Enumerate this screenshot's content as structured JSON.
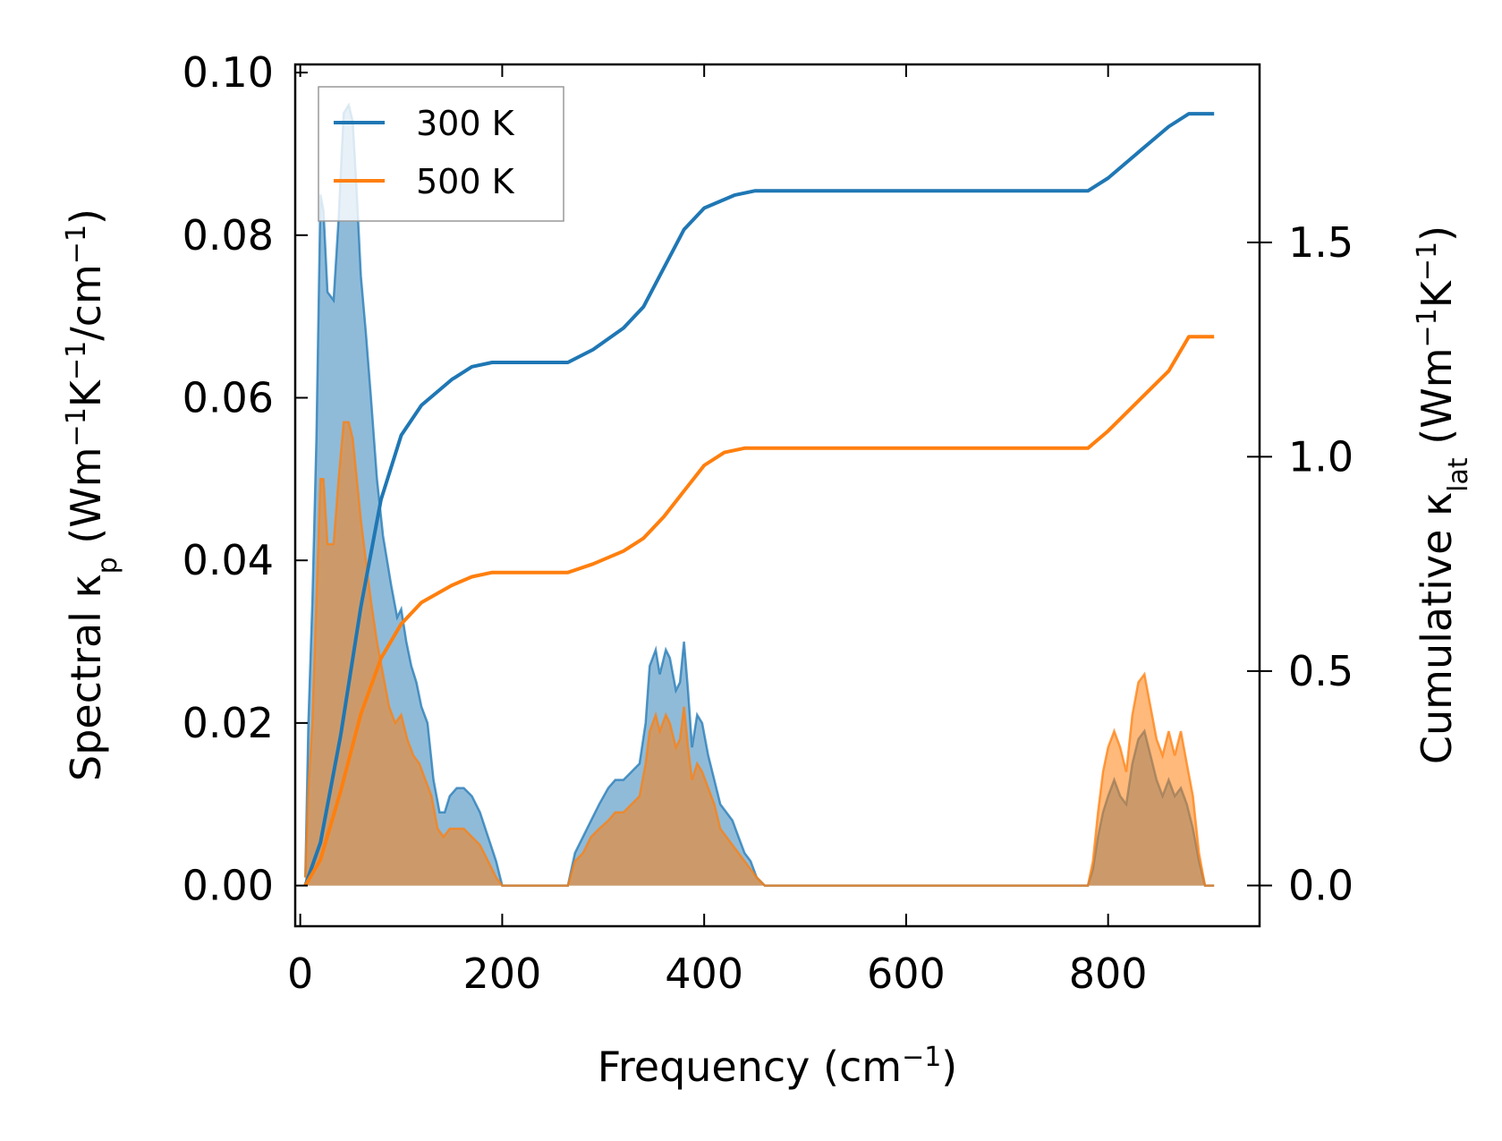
{
  "chart_data": {
    "type": "area",
    "title": "",
    "xlabel": {
      "base": "Frequency (cm",
      "sup": "−1",
      "tail": ")"
    },
    "ylabel_left": {
      "prefix": "Spectral κ",
      "sub": "p",
      "mid1": " (Wm",
      "sup1": "−1",
      "mid2": "K",
      "sup2": "−1",
      "mid3": "/cm",
      "sup3": "−1",
      "tail": ")"
    },
    "ylabel_right": {
      "prefix": "Cumulative κ",
      "sub": "lat",
      "mid1": " (Wm",
      "sup1": "−1",
      "mid2": "K",
      "sup2": "−1",
      "tail": ")"
    },
    "xlim": [
      -5,
      950
    ],
    "ylim_left": [
      -0.005,
      0.101
    ],
    "ylim_right": [
      -0.095,
      1.915
    ],
    "x_ticks": [
      0,
      200,
      400,
      600,
      800
    ],
    "x_tick_labels": [
      "0",
      "200",
      "400",
      "600",
      "800"
    ],
    "y_left_ticks": [
      0.0,
      0.02,
      0.04,
      0.06,
      0.08,
      0.1
    ],
    "y_left_tick_labels": [
      "0.00",
      "0.02",
      "0.04",
      "0.06",
      "0.08",
      "0.10"
    ],
    "y_right_ticks": [
      0.0,
      0.5,
      1.0,
      1.5
    ],
    "y_right_tick_labels": [
      "0.0",
      "0.5",
      "1.0",
      "1.5"
    ],
    "grid": false,
    "legend": {
      "placement": "top-left",
      "entries": [
        "300 K",
        "500 K"
      ]
    },
    "colors": {
      "s300": "#1f77b4",
      "s500": "#ff7f0e",
      "fill300": "#1f77b4",
      "fill500": "#ff7f0e",
      "overlap": "#c29a70"
    },
    "series": [
      {
        "name": "300 K",
        "spectral": [
          [
            5,
            0.001
          ],
          [
            8,
            0.02
          ],
          [
            12,
            0.035
          ],
          [
            16,
            0.055
          ],
          [
            20,
            0.085
          ],
          [
            23,
            0.083
          ],
          [
            27,
            0.073
          ],
          [
            33,
            0.072
          ],
          [
            38,
            0.082
          ],
          [
            43,
            0.095
          ],
          [
            48,
            0.096
          ],
          [
            52,
            0.094
          ],
          [
            56,
            0.085
          ],
          [
            60,
            0.075
          ],
          [
            65,
            0.068
          ],
          [
            70,
            0.06
          ],
          [
            76,
            0.05
          ],
          [
            82,
            0.043
          ],
          [
            90,
            0.037
          ],
          [
            96,
            0.033
          ],
          [
            100,
            0.034
          ],
          [
            105,
            0.03
          ],
          [
            110,
            0.027
          ],
          [
            115,
            0.025
          ],
          [
            120,
            0.022
          ],
          [
            126,
            0.02
          ],
          [
            132,
            0.013
          ],
          [
            138,
            0.009
          ],
          [
            143,
            0.009
          ],
          [
            148,
            0.011
          ],
          [
            155,
            0.012
          ],
          [
            162,
            0.012
          ],
          [
            170,
            0.011
          ],
          [
            178,
            0.009
          ],
          [
            186,
            0.006
          ],
          [
            194,
            0.003
          ],
          [
            200,
            0.0
          ],
          [
            265,
            0.0
          ],
          [
            272,
            0.004
          ],
          [
            280,
            0.006
          ],
          [
            288,
            0.008
          ],
          [
            296,
            0.01
          ],
          [
            305,
            0.012
          ],
          [
            312,
            0.013
          ],
          [
            320,
            0.013
          ],
          [
            328,
            0.014
          ],
          [
            336,
            0.015
          ],
          [
            342,
            0.02
          ],
          [
            346,
            0.027
          ],
          [
            352,
            0.029
          ],
          [
            356,
            0.026
          ],
          [
            362,
            0.029
          ],
          [
            366,
            0.028
          ],
          [
            372,
            0.024
          ],
          [
            376,
            0.025
          ],
          [
            380,
            0.03
          ],
          [
            384,
            0.024
          ],
          [
            388,
            0.017
          ],
          [
            393,
            0.021
          ],
          [
            398,
            0.02
          ],
          [
            404,
            0.016
          ],
          [
            410,
            0.013
          ],
          [
            416,
            0.01
          ],
          [
            422,
            0.009
          ],
          [
            428,
            0.008
          ],
          [
            434,
            0.006
          ],
          [
            440,
            0.004
          ],
          [
            446,
            0.003
          ],
          [
            452,
            0.001
          ],
          [
            460,
            0.0
          ],
          [
            780,
            0.0
          ],
          [
            785,
            0.002
          ],
          [
            790,
            0.006
          ],
          [
            795,
            0.009
          ],
          [
            800,
            0.011
          ],
          [
            806,
            0.013
          ],
          [
            812,
            0.011
          ],
          [
            818,
            0.01
          ],
          [
            824,
            0.015
          ],
          [
            830,
            0.018
          ],
          [
            836,
            0.019
          ],
          [
            842,
            0.016
          ],
          [
            848,
            0.013
          ],
          [
            854,
            0.011
          ],
          [
            860,
            0.013
          ],
          [
            866,
            0.011
          ],
          [
            872,
            0.012
          ],
          [
            878,
            0.01
          ],
          [
            884,
            0.007
          ],
          [
            890,
            0.003
          ],
          [
            896,
            0.0
          ],
          [
            905,
            0.0
          ]
        ],
        "cumulative": [
          [
            5,
            0.0
          ],
          [
            20,
            0.1
          ],
          [
            40,
            0.35
          ],
          [
            60,
            0.65
          ],
          [
            80,
            0.9
          ],
          [
            100,
            1.05
          ],
          [
            120,
            1.12
          ],
          [
            150,
            1.18
          ],
          [
            170,
            1.21
          ],
          [
            190,
            1.22
          ],
          [
            265,
            1.22
          ],
          [
            290,
            1.25
          ],
          [
            320,
            1.3
          ],
          [
            340,
            1.35
          ],
          [
            360,
            1.44
          ],
          [
            380,
            1.53
          ],
          [
            400,
            1.58
          ],
          [
            430,
            1.61
          ],
          [
            450,
            1.62
          ],
          [
            780,
            1.62
          ],
          [
            800,
            1.65
          ],
          [
            830,
            1.71
          ],
          [
            860,
            1.77
          ],
          [
            880,
            1.8
          ],
          [
            905,
            1.8
          ]
        ]
      },
      {
        "name": "500 K",
        "spectral": [
          [
            5,
            0.001
          ],
          [
            8,
            0.012
          ],
          [
            12,
            0.02
          ],
          [
            16,
            0.035
          ],
          [
            20,
            0.05
          ],
          [
            23,
            0.05
          ],
          [
            27,
            0.042
          ],
          [
            33,
            0.042
          ],
          [
            38,
            0.05
          ],
          [
            43,
            0.057
          ],
          [
            48,
            0.057
          ],
          [
            52,
            0.055
          ],
          [
            56,
            0.05
          ],
          [
            60,
            0.045
          ],
          [
            65,
            0.04
          ],
          [
            70,
            0.035
          ],
          [
            76,
            0.03
          ],
          [
            82,
            0.026
          ],
          [
            88,
            0.022
          ],
          [
            94,
            0.02
          ],
          [
            100,
            0.021
          ],
          [
            106,
            0.018
          ],
          [
            112,
            0.016
          ],
          [
            118,
            0.015
          ],
          [
            124,
            0.013
          ],
          [
            130,
            0.011
          ],
          [
            136,
            0.007
          ],
          [
            142,
            0.006
          ],
          [
            148,
            0.007
          ],
          [
            155,
            0.007
          ],
          [
            162,
            0.007
          ],
          [
            170,
            0.006
          ],
          [
            178,
            0.005
          ],
          [
            186,
            0.003
          ],
          [
            194,
            0.001
          ],
          [
            200,
            0.0
          ],
          [
            265,
            0.0
          ],
          [
            272,
            0.003
          ],
          [
            280,
            0.004
          ],
          [
            288,
            0.006
          ],
          [
            296,
            0.007
          ],
          [
            305,
            0.008
          ],
          [
            312,
            0.009
          ],
          [
            320,
            0.009
          ],
          [
            328,
            0.01
          ],
          [
            336,
            0.011
          ],
          [
            342,
            0.015
          ],
          [
            346,
            0.019
          ],
          [
            352,
            0.021
          ],
          [
            356,
            0.019
          ],
          [
            362,
            0.021
          ],
          [
            366,
            0.02
          ],
          [
            372,
            0.017
          ],
          [
            376,
            0.018
          ],
          [
            380,
            0.022
          ],
          [
            384,
            0.017
          ],
          [
            388,
            0.013
          ],
          [
            393,
            0.015
          ],
          [
            398,
            0.014
          ],
          [
            404,
            0.012
          ],
          [
            410,
            0.01
          ],
          [
            416,
            0.007
          ],
          [
            422,
            0.006
          ],
          [
            428,
            0.005
          ],
          [
            434,
            0.004
          ],
          [
            440,
            0.003
          ],
          [
            446,
            0.002
          ],
          [
            452,
            0.001
          ],
          [
            460,
            0.0
          ],
          [
            780,
            0.0
          ],
          [
            785,
            0.003
          ],
          [
            790,
            0.009
          ],
          [
            795,
            0.014
          ],
          [
            800,
            0.017
          ],
          [
            806,
            0.019
          ],
          [
            812,
            0.017
          ],
          [
            818,
            0.014
          ],
          [
            824,
            0.021
          ],
          [
            830,
            0.025
          ],
          [
            836,
            0.026
          ],
          [
            842,
            0.022
          ],
          [
            848,
            0.018
          ],
          [
            854,
            0.016
          ],
          [
            860,
            0.019
          ],
          [
            866,
            0.016
          ],
          [
            872,
            0.019
          ],
          [
            878,
            0.015
          ],
          [
            884,
            0.011
          ],
          [
            890,
            0.004
          ],
          [
            896,
            0.0
          ],
          [
            905,
            0.0
          ]
        ],
        "cumulative": [
          [
            5,
            0.0
          ],
          [
            20,
            0.06
          ],
          [
            40,
            0.22
          ],
          [
            60,
            0.4
          ],
          [
            80,
            0.53
          ],
          [
            100,
            0.61
          ],
          [
            120,
            0.66
          ],
          [
            150,
            0.7
          ],
          [
            170,
            0.72
          ],
          [
            190,
            0.73
          ],
          [
            265,
            0.73
          ],
          [
            290,
            0.75
          ],
          [
            320,
            0.78
          ],
          [
            340,
            0.81
          ],
          [
            360,
            0.86
          ],
          [
            380,
            0.92
          ],
          [
            400,
            0.98
          ],
          [
            420,
            1.01
          ],
          [
            440,
            1.02
          ],
          [
            780,
            1.02
          ],
          [
            800,
            1.06
          ],
          [
            830,
            1.13
          ],
          [
            860,
            1.2
          ],
          [
            880,
            1.28
          ],
          [
            905,
            1.28
          ]
        ]
      }
    ]
  }
}
